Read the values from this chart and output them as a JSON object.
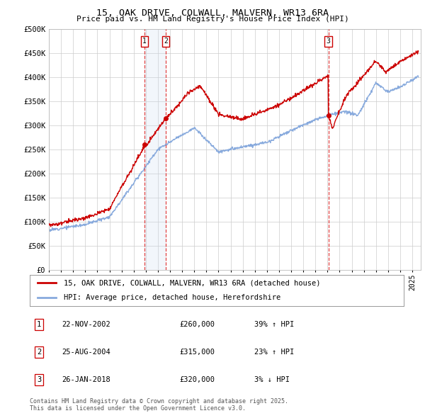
{
  "title_line1": "15, OAK DRIVE, COLWALL, MALVERN, WR13 6RA",
  "title_line2": "Price paid vs. HM Land Registry's House Price Index (HPI)",
  "ylim": [
    0,
    500000
  ],
  "yticks": [
    0,
    50000,
    100000,
    150000,
    200000,
    250000,
    300000,
    350000,
    400000,
    450000,
    500000
  ],
  "ytick_labels": [
    "£0",
    "£50K",
    "£100K",
    "£150K",
    "£200K",
    "£250K",
    "£300K",
    "£350K",
    "£400K",
    "£450K",
    "£500K"
  ],
  "sale_color": "#cc0000",
  "hpi_color": "#88aadd",
  "vline_color": "#dd2222",
  "shade_color": "#ccddf0",
  "sale_label": "15, OAK DRIVE, COLWALL, MALVERN, WR13 6RA (detached house)",
  "hpi_label": "HPI: Average price, detached house, Herefordshire",
  "transactions": [
    {
      "num": 1,
      "date": "22-NOV-2002",
      "price": 260000,
      "change": "39%",
      "direction": "↑",
      "x_year": 2002.9
    },
    {
      "num": 2,
      "date": "25-AUG-2004",
      "price": 315000,
      "change": "23%",
      "direction": "↑",
      "x_year": 2004.65
    },
    {
      "num": 3,
      "date": "26-JAN-2018",
      "price": 320000,
      "change": "3%",
      "direction": "↓",
      "x_year": 2018.07
    }
  ],
  "footer_line1": "Contains HM Land Registry data © Crown copyright and database right 2025.",
  "footer_line2": "This data is licensed under the Open Government Licence v3.0.",
  "bg_color": "#ffffff",
  "grid_color": "#cccccc",
  "xlim_start": 1995,
  "xlim_end": 2025.5
}
